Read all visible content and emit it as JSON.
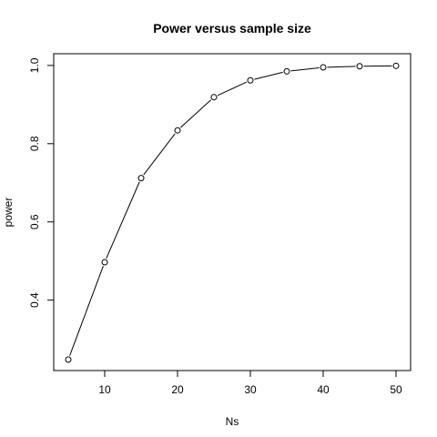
{
  "chart_data": {
    "type": "line",
    "title": "Power versus sample size",
    "xlabel": "Ns",
    "ylabel": "power",
    "xlim": [
      3,
      52
    ],
    "ylim": [
      0.22,
      1.03
    ],
    "xticks": [
      10,
      20,
      30,
      40,
      50
    ],
    "yticks": [
      0.4,
      0.6,
      0.8,
      1.0
    ],
    "ytick_labels": [
      "0.4",
      "0.6",
      "0.8",
      "1.0"
    ],
    "grid": false,
    "marker": "open-circle",
    "color": "#000000",
    "series": [
      {
        "x": [
          5,
          10,
          15,
          20,
          25,
          30,
          35,
          40,
          45,
          50
        ],
        "y": [
          0.248,
          0.497,
          0.712,
          0.834,
          0.919,
          0.962,
          0.985,
          0.995,
          0.998,
          0.999
        ]
      }
    ]
  }
}
